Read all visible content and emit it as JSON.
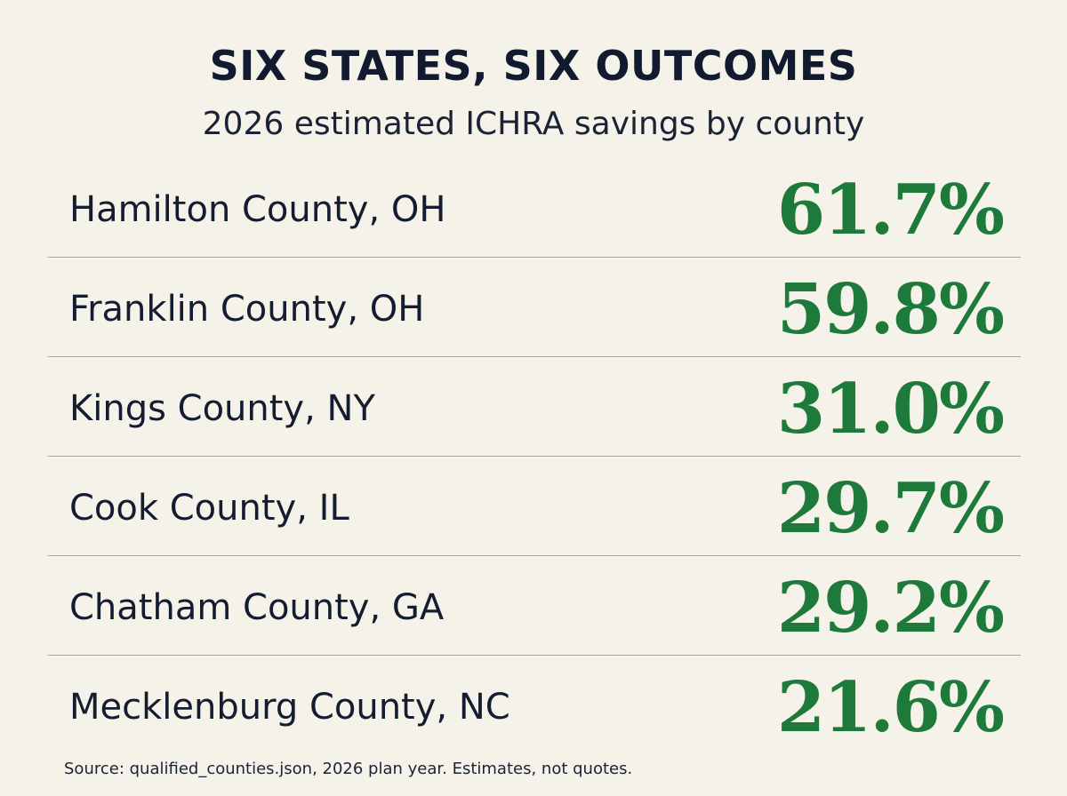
{
  "chart_data": {
    "type": "table",
    "title": "SIX STATES, SIX OUTCOMES",
    "subtitle": "2026 estimated ICHRA savings by county",
    "categories": [
      "Hamilton County, OH",
      "Franklin County, OH",
      "Kings County, NY",
      "Cook County, IL",
      "Chatham County, GA",
      "Mecklenburg County, NC"
    ],
    "values": [
      61.7,
      59.8,
      31.0,
      29.7,
      29.2,
      21.6
    ],
    "value_labels": [
      "61.7%",
      "59.8%",
      "31.0%",
      "29.7%",
      "29.2%",
      "21.6%"
    ],
    "source": "Source: qualified_counties.json, 2026 plan year. Estimates, not quotes.",
    "colors": {
      "background": "#f5f2e9",
      "value": "#1e7a3a",
      "divider": "#8fb6a3",
      "text": "#141c30"
    }
  }
}
